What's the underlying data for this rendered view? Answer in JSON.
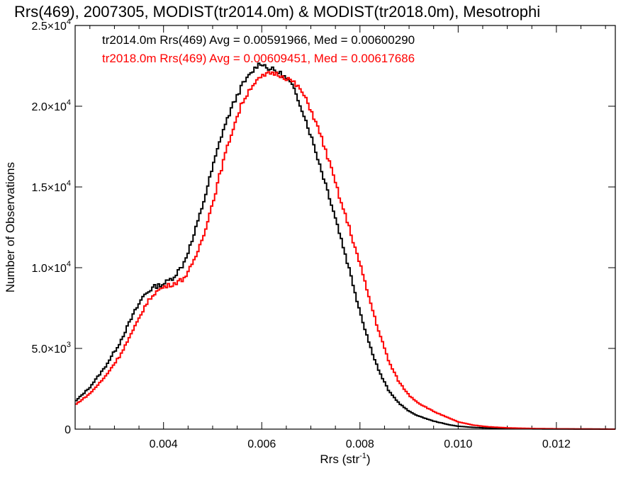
{
  "chart_data": {
    "type": "line",
    "title": "Rrs(469), 2007305, MODIST(tr2014.0m) & MODIST(tr2018.0m), Mesotrophi",
    "xlabel": "Rrs (str",
    "xlabel_sup": "-1",
    "xlabel_end": ")",
    "ylabel": "Number of Observations",
    "xlim": [
      0.0022,
      0.0132
    ],
    "ylim": [
      0,
      25000
    ],
    "x_ticks": [
      {
        "value": 0.004,
        "label": "0.004"
      },
      {
        "value": 0.006,
        "label": "0.006"
      },
      {
        "value": 0.008,
        "label": "0.008"
      },
      {
        "value": 0.01,
        "label": "0.010"
      },
      {
        "value": 0.012,
        "label": "0.012"
      }
    ],
    "y_ticks": [
      {
        "value": 0,
        "mantissa": "0",
        "exponent": ""
      },
      {
        "value": 5000,
        "mantissa": "5.0×10",
        "exponent": "3"
      },
      {
        "value": 10000,
        "mantissa": "1.0×10",
        "exponent": "4"
      },
      {
        "value": 15000,
        "mantissa": "1.5×10",
        "exponent": "4"
      },
      {
        "value": 20000,
        "mantissa": "2.0×10",
        "exponent": "4"
      },
      {
        "value": 25000,
        "mantissa": "2.5×10",
        "exponent": "4"
      }
    ],
    "legend_position": "top-left",
    "series": [
      {
        "name": "tr2014.0m Rrs(469) Avg = 0.00591966, Med = 0.00600290",
        "color": "#000000",
        "points": [
          [
            0.0022,
            1700
          ],
          [
            0.0025,
            2600
          ],
          [
            0.0028,
            3800
          ],
          [
            0.0031,
            5300
          ],
          [
            0.0034,
            7200
          ],
          [
            0.0036,
            8300
          ],
          [
            0.0038,
            8800
          ],
          [
            0.004,
            9000
          ],
          [
            0.0042,
            9400
          ],
          [
            0.0044,
            10200
          ],
          [
            0.0046,
            11800
          ],
          [
            0.0048,
            13900
          ],
          [
            0.005,
            16200
          ],
          [
            0.0052,
            18400
          ],
          [
            0.0054,
            20000
          ],
          [
            0.0056,
            21300
          ],
          [
            0.0058,
            22100
          ],
          [
            0.0059,
            22500
          ],
          [
            0.006,
            22700
          ],
          [
            0.0061,
            22400
          ],
          [
            0.0062,
            22300
          ],
          [
            0.0064,
            22000
          ],
          [
            0.0066,
            21400
          ],
          [
            0.0068,
            20000
          ],
          [
            0.007,
            18200
          ],
          [
            0.0072,
            16200
          ],
          [
            0.0074,
            14200
          ],
          [
            0.0076,
            12000
          ],
          [
            0.0078,
            9700
          ],
          [
            0.008,
            7300
          ],
          [
            0.0082,
            5200
          ],
          [
            0.0084,
            3500
          ],
          [
            0.0086,
            2300
          ],
          [
            0.0088,
            1600
          ],
          [
            0.009,
            1100
          ],
          [
            0.0092,
            800
          ],
          [
            0.0095,
            500
          ],
          [
            0.0098,
            280
          ],
          [
            0.01,
            180
          ],
          [
            0.0103,
            110
          ],
          [
            0.0106,
            70
          ],
          [
            0.011,
            40
          ],
          [
            0.0115,
            20
          ],
          [
            0.012,
            10
          ],
          [
            0.0125,
            5
          ],
          [
            0.0132,
            0
          ]
        ]
      },
      {
        "name": "tr2018.0m Rrs(469) Avg = 0.00609451, Med = 0.00617686",
        "color": "#ff0000",
        "points": [
          [
            0.0022,
            1500
          ],
          [
            0.0025,
            2200
          ],
          [
            0.0028,
            3200
          ],
          [
            0.0031,
            4500
          ],
          [
            0.0034,
            6200
          ],
          [
            0.0036,
            7500
          ],
          [
            0.0038,
            8400
          ],
          [
            0.004,
            8800
          ],
          [
            0.0042,
            9000
          ],
          [
            0.0044,
            9300
          ],
          [
            0.0046,
            10200
          ],
          [
            0.0048,
            11900
          ],
          [
            0.005,
            14000
          ],
          [
            0.0052,
            16400
          ],
          [
            0.0054,
            18500
          ],
          [
            0.0056,
            20200
          ],
          [
            0.0058,
            21300
          ],
          [
            0.006,
            21800
          ],
          [
            0.0062,
            22100
          ],
          [
            0.0064,
            21900
          ],
          [
            0.0066,
            21600
          ],
          [
            0.0068,
            21000
          ],
          [
            0.007,
            19800
          ],
          [
            0.0072,
            18200
          ],
          [
            0.0074,
            16300
          ],
          [
            0.0076,
            14200
          ],
          [
            0.0078,
            12300
          ],
          [
            0.008,
            10200
          ],
          [
            0.0082,
            8000
          ],
          [
            0.0084,
            5900
          ],
          [
            0.0086,
            4100
          ],
          [
            0.0088,
            2900
          ],
          [
            0.009,
            2100
          ],
          [
            0.0092,
            1600
          ],
          [
            0.0095,
            1100
          ],
          [
            0.0098,
            700
          ],
          [
            0.01,
            450
          ],
          [
            0.0103,
            250
          ],
          [
            0.0106,
            150
          ],
          [
            0.011,
            80
          ],
          [
            0.0115,
            40
          ],
          [
            0.012,
            20
          ],
          [
            0.0125,
            10
          ],
          [
            0.0132,
            0
          ]
        ]
      }
    ]
  }
}
